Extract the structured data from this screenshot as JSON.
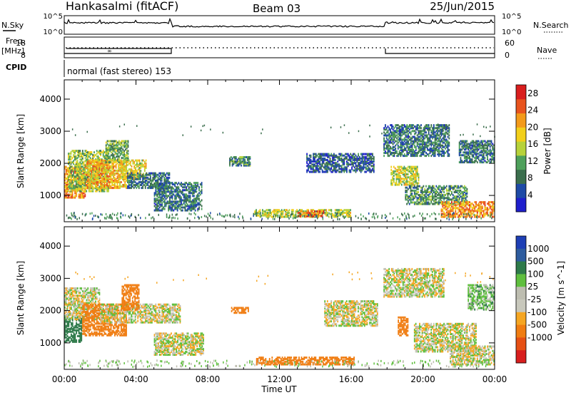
{
  "header": {
    "title": "Hankasalmi (fitACF)",
    "beam": "Beam 03",
    "date": "25/Jun/2015"
  },
  "strip_labels": {
    "nsky": "N.Sky",
    "nsky_ticks": [
      "10^5",
      "10^0"
    ],
    "nsearch": "N.Search",
    "nsearch_ticks": [
      "10^5",
      "10^0"
    ],
    "freq": "Freq.",
    "freq_unit": "[MHz]",
    "freq_ticks": [
      "18",
      "8"
    ],
    "nave": "Nave",
    "nave_ticks": [
      "60",
      "0"
    ],
    "cpid": "CPID",
    "mode": "normal (fast stereo) 153"
  },
  "colors": {
    "power": [
      "#1f1fcc",
      "#1e4aa6",
      "#3b6e4d",
      "#4ea05b",
      "#b7d23a",
      "#f2cf1a",
      "#f39a1a",
      "#e8541e",
      "#d91e1e"
    ],
    "velocity": [
      "#1e3fb5",
      "#2e5c9e",
      "#2e7a4a",
      "#5fbf3e",
      "#bdbdb0",
      "#c8c8bc",
      "#f5a623",
      "#f07d12",
      "#e65014",
      "#d81e1e"
    ]
  },
  "chart_data": [
    {
      "type": "heatmap",
      "name": "power",
      "ylabel": "Slant Range [km]",
      "yticks": [
        "1000",
        "2000",
        "3000",
        "4000"
      ],
      "ylim": [
        180,
        4600
      ],
      "xlim": [
        "00:00",
        "24:00"
      ],
      "colorbar": {
        "label": "Power [dB]",
        "ticks": [
          "4",
          "8",
          "12",
          "16",
          "20",
          "24",
          "28"
        ],
        "range": [
          0,
          30
        ]
      },
      "regions": [
        {
          "t0": 0.0,
          "t1": 1.2,
          "r0": 900,
          "r1": 1900,
          "value": 22
        },
        {
          "t0": 0.2,
          "t1": 2.5,
          "r0": 1100,
          "r1": 2400,
          "value": 14
        },
        {
          "t0": 1.2,
          "t1": 3.5,
          "r0": 1200,
          "r1": 2100,
          "value": 20
        },
        {
          "t0": 2.3,
          "t1": 3.6,
          "r0": 2000,
          "r1": 2700,
          "value": 12
        },
        {
          "t0": 3.0,
          "t1": 4.6,
          "r0": 1500,
          "r1": 2100,
          "value": 18
        },
        {
          "t0": 3.5,
          "t1": 5.9,
          "r0": 1200,
          "r1": 1700,
          "value": 8
        },
        {
          "t0": 5.0,
          "t1": 7.7,
          "r0": 500,
          "r1": 1400,
          "value": 8
        },
        {
          "t0": 9.2,
          "t1": 10.4,
          "r0": 1900,
          "r1": 2200,
          "value": 10
        },
        {
          "t0": 10.6,
          "t1": 16.0,
          "r0": 300,
          "r1": 550,
          "value": 16
        },
        {
          "t0": 13.0,
          "t1": 14.5,
          "r0": 320,
          "r1": 520,
          "value": 24
        },
        {
          "t0": 13.5,
          "t1": 17.3,
          "r0": 1700,
          "r1": 2300,
          "value": 6
        },
        {
          "t0": 17.8,
          "t1": 21.5,
          "r0": 2200,
          "r1": 3200,
          "value": 8
        },
        {
          "t0": 18.2,
          "t1": 19.8,
          "r0": 1300,
          "r1": 1900,
          "value": 16
        },
        {
          "t0": 19.0,
          "t1": 22.5,
          "r0": 700,
          "r1": 1300,
          "value": 10
        },
        {
          "t0": 21.0,
          "t1": 24.0,
          "r0": 300,
          "r1": 800,
          "value": 22
        },
        {
          "t0": 22.0,
          "t1": 24.0,
          "r0": 2000,
          "r1": 2700,
          "value": 8
        }
      ]
    },
    {
      "type": "heatmap",
      "name": "velocity",
      "ylabel": "Slant Range [km]",
      "yticks": [
        "1000",
        "2000",
        "3000",
        "4000"
      ],
      "ylim": [
        180,
        4600
      ],
      "xlim": [
        "00:00",
        "24:00"
      ],
      "xlabel": "Time UT",
      "xticks": [
        "00:00",
        "04:00",
        "08:00",
        "12:00",
        "16:00",
        "20:00",
        "00:00"
      ],
      "colorbar": {
        "label": "Velocity [m s^-1]",
        "ticks": [
          "1000",
          "500",
          "100",
          "25",
          "-25",
          "-100",
          "-500",
          "-1000"
        ],
        "range": [
          -1000,
          1000
        ]
      },
      "regions": [
        {
          "t0": 0.0,
          "t1": 1.0,
          "r0": 1000,
          "r1": 1800,
          "value": 300
        },
        {
          "t0": 0.0,
          "t1": 2.0,
          "r0": 1700,
          "r1": 2700,
          "value": 0
        },
        {
          "t0": 1.0,
          "t1": 3.5,
          "r0": 1200,
          "r1": 2200,
          "value": -300
        },
        {
          "t0": 2.0,
          "t1": 6.5,
          "r0": 1600,
          "r1": 2200,
          "value": 0
        },
        {
          "t0": 3.2,
          "t1": 4.2,
          "r0": 2000,
          "r1": 2800,
          "value": -300
        },
        {
          "t0": 5.0,
          "t1": 7.8,
          "r0": 600,
          "r1": 1300,
          "value": 0
        },
        {
          "t0": 9.3,
          "t1": 10.3,
          "r0": 1900,
          "r1": 2100,
          "value": -300
        },
        {
          "t0": 10.7,
          "t1": 16.2,
          "r0": 300,
          "r1": 550,
          "value": -300
        },
        {
          "t0": 14.5,
          "t1": 17.5,
          "r0": 1500,
          "r1": 2300,
          "value": 0
        },
        {
          "t0": 17.8,
          "t1": 21.2,
          "r0": 2400,
          "r1": 3300,
          "value": 0
        },
        {
          "t0": 18.6,
          "t1": 19.2,
          "r0": 1200,
          "r1": 1800,
          "value": -300
        },
        {
          "t0": 19.5,
          "t1": 23.0,
          "r0": 700,
          "r1": 1600,
          "value": 0
        },
        {
          "t0": 21.5,
          "t1": 24.0,
          "r0": 300,
          "r1": 900,
          "value": 0
        },
        {
          "t0": 22.5,
          "t1": 24.0,
          "r0": 2000,
          "r1": 2800,
          "value": 50
        }
      ]
    }
  ]
}
